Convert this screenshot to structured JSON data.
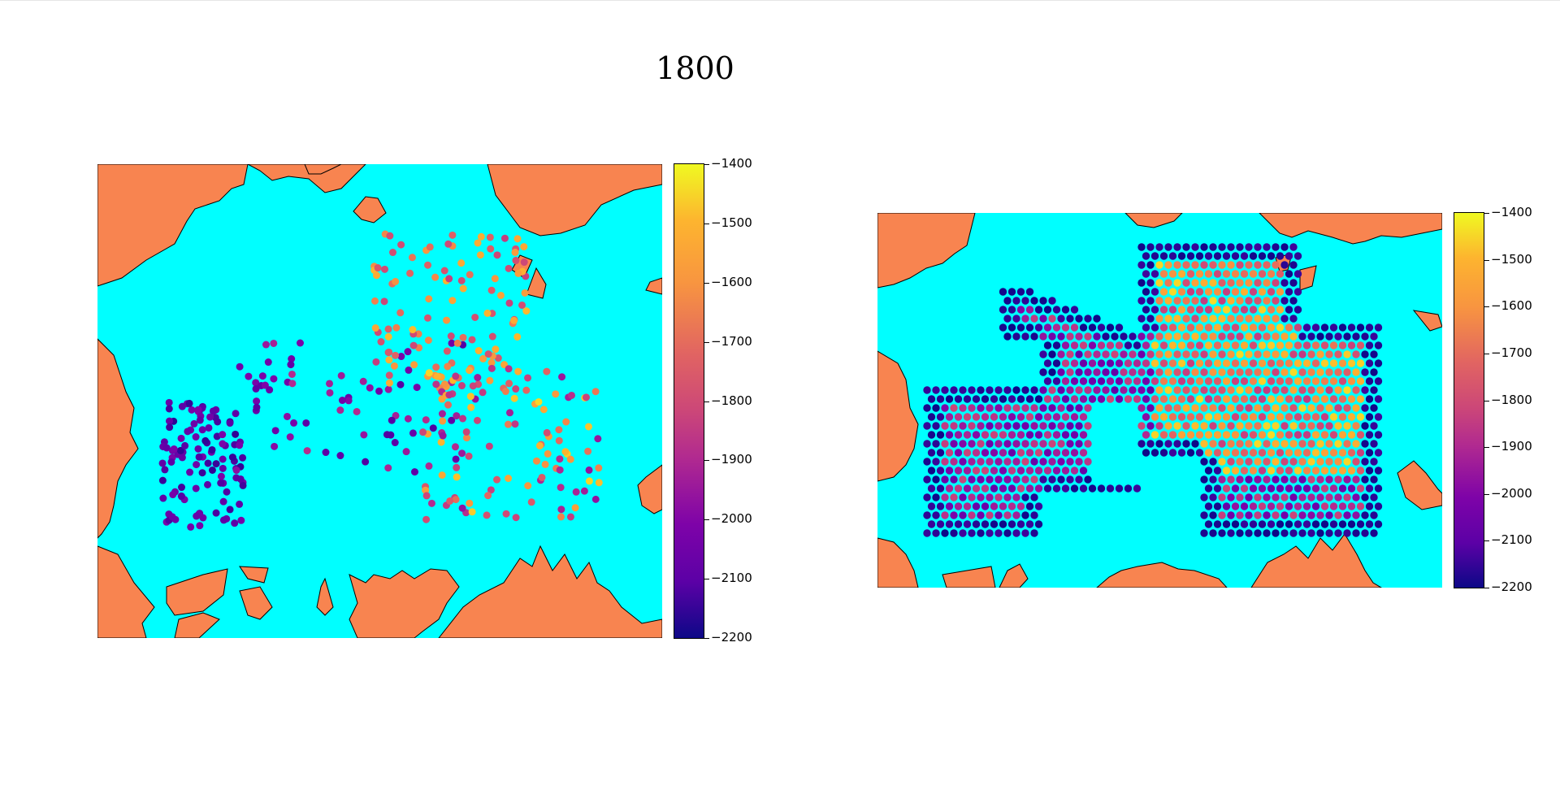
{
  "figure_title": "1800",
  "colors": {
    "ocean": "#00ffff",
    "land": "#f88450",
    "coast": "#000000"
  },
  "colormap": "plasma",
  "chart_data": [
    {
      "type": "scatter",
      "name": "left-map",
      "title": "",
      "colorbar": {
        "vmin": -2200,
        "vmax": -1400,
        "ticks": [
          -1400,
          -1500,
          -1600,
          -1700,
          -1800,
          -1900,
          -2000,
          -2100,
          -2200
        ]
      },
      "points_xy_note": "",
      "x": [],
      "y": []
    },
    {
      "type": "scatter",
      "name": "right-map",
      "title": "",
      "colorbar": {
        "vmin": -2200,
        "vmax": -1400,
        "ticks": [
          -1400,
          -1500,
          -1600,
          -1700,
          -1800,
          -1900,
          -2000,
          -2100,
          -2200
        ]
      }
    }
  ],
  "colorbar_left": {
    "ticks": [
      "−1400",
      "−1500",
      "−1600",
      "−1700",
      "−1800",
      "−1900",
      "−2000",
      "−2100",
      "−2200"
    ]
  },
  "colorbar_right": {
    "ticks": [
      "−1400",
      "−1500",
      "−1600",
      "−1700",
      "−1800",
      "−1900",
      "−2000",
      "−2100",
      "−2200"
    ]
  }
}
